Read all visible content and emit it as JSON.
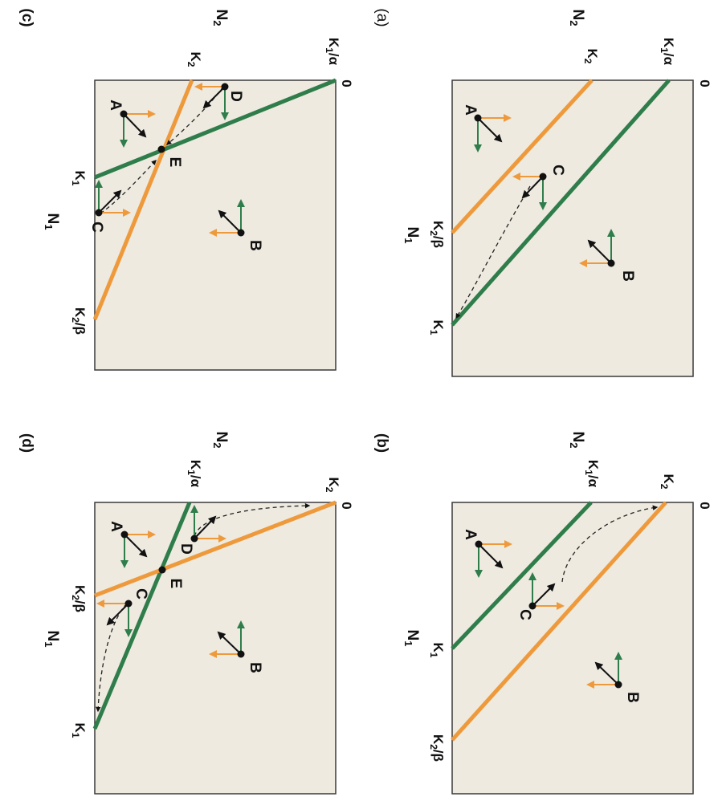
{
  "colors": {
    "background": "#eeeae0",
    "frame": "#3a3a3a",
    "species1_isocline": "#2f7d4a",
    "species2_isocline": "#ee9a3c",
    "resultant_arrow": "#111111",
    "trajectory": "#222222"
  },
  "panels": [
    {
      "id": "a",
      "title": "(a)",
      "x_axis_label": "N",
      "x_axis_sub": "1",
      "y_axis_label": "N",
      "y_axis_sub": "2",
      "origin_label": "0",
      "y_ticks": [
        {
          "main": "K",
          "sub": "2",
          "suffix": ""
        },
        {
          "main": "K",
          "sub": "1",
          "suffix": "/α"
        }
      ],
      "x_ticks": [
        {
          "main": "K",
          "sub": "2",
          "suffix": "/β"
        },
        {
          "main": "K",
          "sub": "1",
          "suffix": ""
        }
      ],
      "points": [
        "A",
        "B",
        "C"
      ]
    },
    {
      "id": "b",
      "title": "(b)",
      "x_axis_label": "N",
      "x_axis_sub": "1",
      "y_axis_label": "N",
      "y_axis_sub": "2",
      "origin_label": "0",
      "y_ticks": [
        {
          "main": "K",
          "sub": "1",
          "suffix": "/α"
        },
        {
          "main": "K",
          "sub": "2",
          "suffix": ""
        }
      ],
      "x_ticks": [
        {
          "main": "K",
          "sub": "1",
          "suffix": ""
        },
        {
          "main": "K",
          "sub": "2",
          "suffix": "/β"
        }
      ],
      "points": [
        "A",
        "B",
        "C"
      ]
    },
    {
      "id": "c",
      "title": "(c)",
      "x_axis_label": "N",
      "x_axis_sub": "1",
      "y_axis_label": "N",
      "y_axis_sub": "2",
      "origin_label": "0",
      "y_ticks": [
        {
          "main": "K",
          "sub": "2",
          "suffix": ""
        },
        {
          "main": "K",
          "sub": "1",
          "suffix": "/α"
        }
      ],
      "x_ticks": [
        {
          "main": "K",
          "sub": "1",
          "suffix": ""
        },
        {
          "main": "K",
          "sub": "2",
          "suffix": "/β"
        }
      ],
      "points": [
        "A",
        "B",
        "C",
        "D",
        "E"
      ]
    },
    {
      "id": "d",
      "title": "(d)",
      "x_axis_label": "N",
      "x_axis_sub": "1",
      "y_axis_label": "N",
      "y_axis_sub": "2",
      "origin_label": "0",
      "y_ticks": [
        {
          "main": "K",
          "sub": "1",
          "suffix": "/α"
        },
        {
          "main": "K",
          "sub": "2",
          "suffix": ""
        }
      ],
      "x_ticks": [
        {
          "main": "K",
          "sub": "2",
          "suffix": "/β"
        },
        {
          "main": "K",
          "sub": "1",
          "suffix": ""
        }
      ],
      "points": [
        "A",
        "B",
        "C",
        "D",
        "E"
      ]
    }
  ]
}
